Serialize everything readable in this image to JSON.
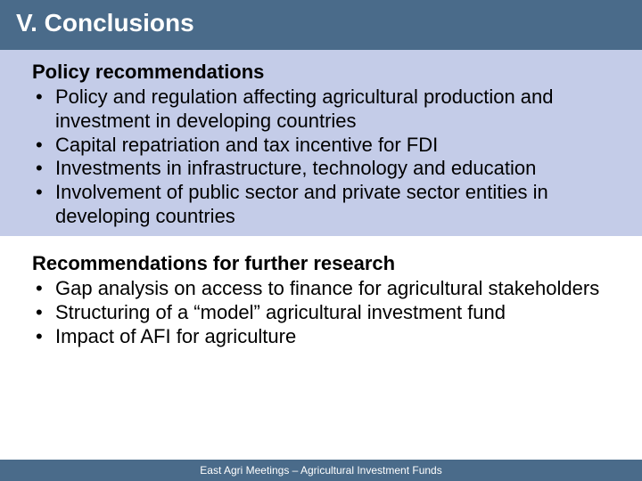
{
  "title": "V. Conclusions",
  "section1": {
    "heading": "Policy recommendations",
    "bullets": [
      "Policy and regulation affecting agricultural production and investment in developing countries",
      "Capital repatriation and tax incentive for FDI",
      "Investments in infrastructure, technology and education",
      "Involvement of public sector and private sector entities in developing countries"
    ]
  },
  "section2": {
    "heading": "Recommendations for further research",
    "bullets": [
      "Gap analysis on access to finance for agricultural stakeholders",
      "Structuring of a “model” agricultural investment fund",
      "Impact of AFI for agriculture"
    ]
  },
  "footer": "East Agri Meetings – Agricultural Investment Funds",
  "colors": {
    "title_bar_bg": "#4a6b8a",
    "title_text": "#ffffff",
    "block1_bg": "#c4cce8",
    "block2_bg": "#ffffff",
    "body_text": "#000000",
    "footer_bg": "#4a6b8a",
    "footer_text": "#ffffff"
  },
  "typography": {
    "title_fontsize": 28,
    "heading_fontsize": 22,
    "bullet_fontsize": 22,
    "footer_fontsize": 12,
    "font_family": "Arial"
  }
}
